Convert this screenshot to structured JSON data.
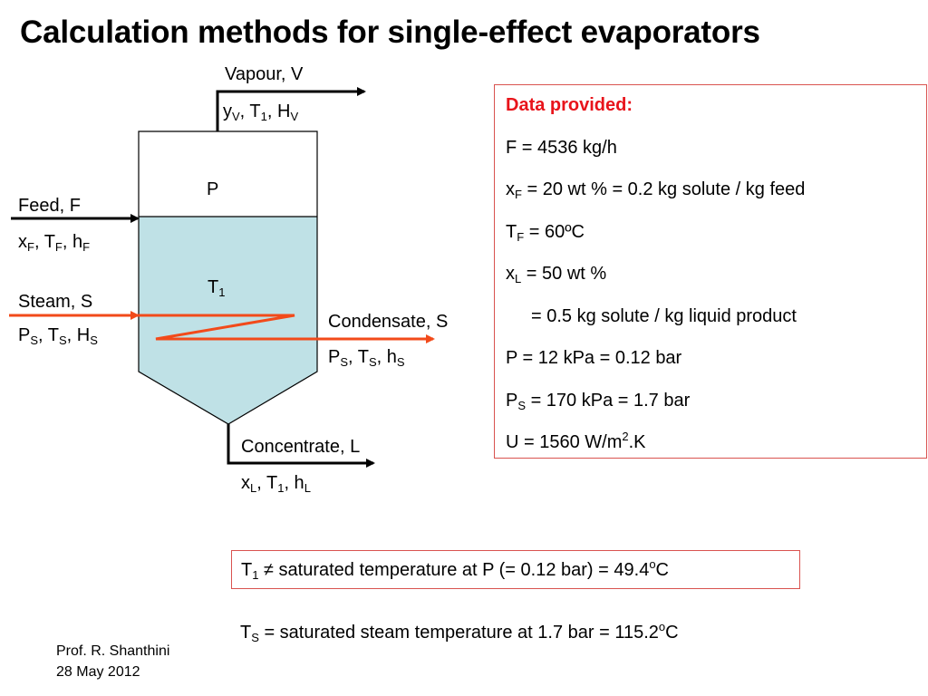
{
  "title": "Calculation methods for single-effect evaporators",
  "diagram": {
    "vessel": {
      "vapour_space_label": "P",
      "liquid_label": "T",
      "liquid_label_sub": "1"
    },
    "vapour": {
      "name": "Vapour, V",
      "props": [
        {
          "base": "y",
          "sub": "V"
        },
        {
          "base": ", T",
          "sub": "1"
        },
        {
          "base": ", H",
          "sub": "V"
        }
      ]
    },
    "feed": {
      "name": "Feed, F",
      "props": [
        {
          "base": "x",
          "sub": "F"
        },
        {
          "base": ", T",
          "sub": "F"
        },
        {
          "base": ", h",
          "sub": "F"
        }
      ]
    },
    "steam": {
      "name": "Steam, S",
      "props": [
        {
          "base": "P",
          "sub": "S"
        },
        {
          "base": ", T",
          "sub": "S"
        },
        {
          "base": ", H",
          "sub": "S"
        }
      ]
    },
    "condensate": {
      "name": "Condensate, S",
      "props": [
        {
          "base": "P",
          "sub": "S"
        },
        {
          "base": ", T",
          "sub": "S"
        },
        {
          "base": ", h",
          "sub": "S"
        }
      ]
    },
    "concentrate": {
      "name": "Concentrate, L",
      "props": [
        {
          "base": "x",
          "sub": "L"
        },
        {
          "base": ", T",
          "sub": "1"
        },
        {
          "base": ", h",
          "sub": "L"
        }
      ]
    },
    "colors": {
      "liquid": "#bfe1e6",
      "coil": "#f24a1a",
      "stroke": "#000000"
    }
  },
  "data_box": {
    "heading": "Data provided:",
    "rows": [
      {
        "parts": [
          {
            "t": "F = 4536 kg/h"
          }
        ]
      },
      {
        "parts": [
          {
            "t": "x"
          },
          {
            "sub": "F"
          },
          {
            "t": " = 20 wt % = 0.2 kg solute / kg feed"
          }
        ]
      },
      {
        "parts": [
          {
            "t": "T"
          },
          {
            "sub": "F"
          },
          {
            "t": " = 60ºC"
          }
        ]
      },
      {
        "parts": [
          {
            "t": "x"
          },
          {
            "sub": "L"
          },
          {
            "t": " = 50 wt %"
          }
        ]
      },
      {
        "indent": true,
        "parts": [
          {
            "t": "= 0.5 kg solute / kg liquid product"
          }
        ]
      },
      {
        "parts": [
          {
            "t": "P = 12 kPa = 0.12 bar"
          }
        ]
      },
      {
        "parts": [
          {
            "t": "P"
          },
          {
            "sub": "S"
          },
          {
            "t": " = 170 kPa = 1.7 bar"
          }
        ]
      },
      {
        "parts": [
          {
            "t": "U = 1560 W/m"
          },
          {
            "sup": "2"
          },
          {
            "t": ".K"
          }
        ]
      }
    ],
    "border_color": "#d9534f",
    "heading_color": "#e8141b"
  },
  "notes": {
    "t1": {
      "parts": [
        {
          "t": "T"
        },
        {
          "sub": "1"
        },
        {
          "t": " ≠ saturated temperature at P (= 0.12 bar) = 49.4"
        },
        {
          "sup": "o"
        },
        {
          "t": "C"
        }
      ]
    },
    "ts": {
      "parts": [
        {
          "t": "T"
        },
        {
          "sub": "S"
        },
        {
          "t": " = saturated steam temperature at 1.7 bar = 115.2"
        },
        {
          "sup": "o"
        },
        {
          "t": "C"
        }
      ]
    }
  },
  "footer": {
    "author": "Prof. R. Shanthini",
    "date": "28 May 2012"
  }
}
